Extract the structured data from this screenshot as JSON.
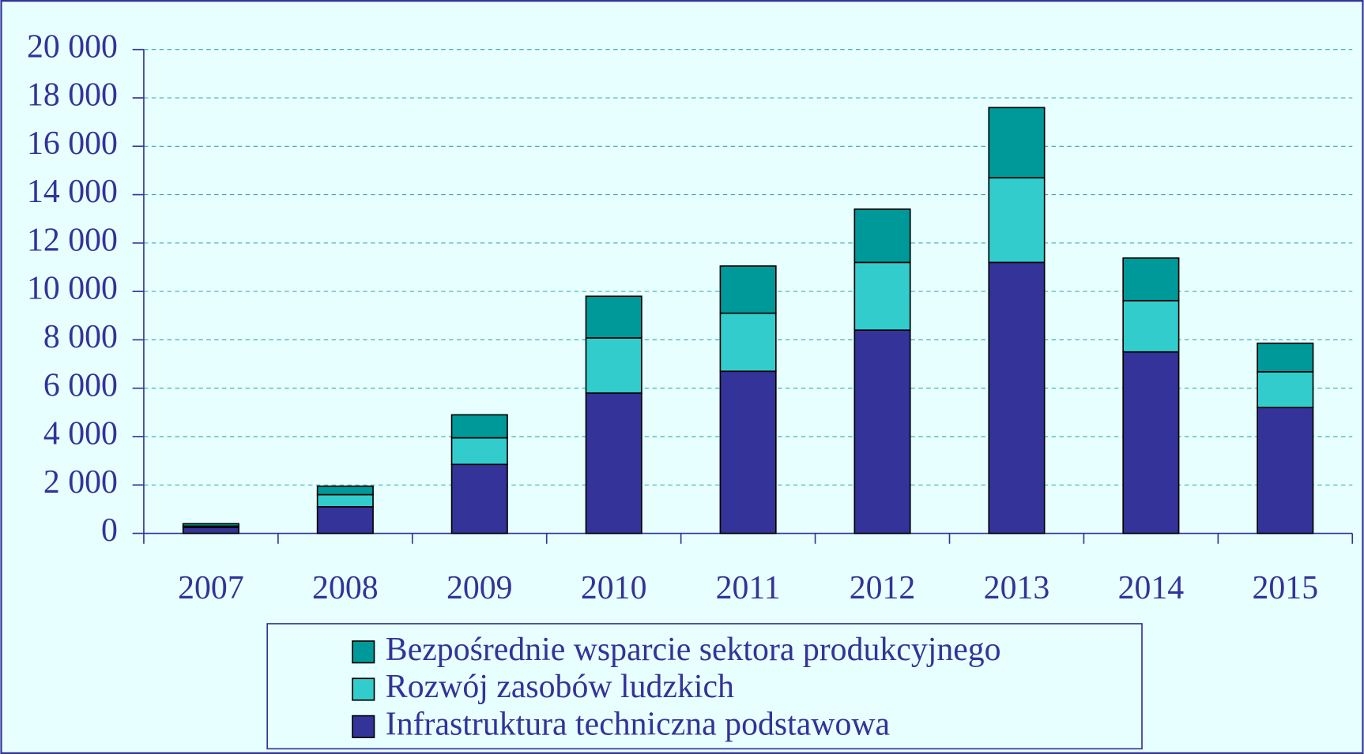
{
  "chart_data": {
    "type": "bar",
    "stacked": true,
    "categories": [
      "2007",
      "2008",
      "2009",
      "2010",
      "2011",
      "2012",
      "2013",
      "2014",
      "2015"
    ],
    "series": [
      {
        "name": "Infrastruktura techniczna podstawowa",
        "color": "#333399",
        "values": [
          250,
          1100,
          2850,
          5800,
          6700,
          8400,
          11200,
          7500,
          5200
        ]
      },
      {
        "name": "Rozwój zasobów ludzkich",
        "color": "#33cccc",
        "values": [
          50,
          500,
          1100,
          2280,
          2400,
          2800,
          3500,
          2120,
          1480
        ]
      },
      {
        "name": "Bezpośrednie wsparcie sektora produkcyjnego",
        "color": "#009999",
        "values": [
          100,
          350,
          950,
          1720,
          1950,
          2200,
          2900,
          1760,
          1180
        ]
      }
    ],
    "ylim": [
      0,
      20000
    ],
    "yticks": [
      0,
      {
        "value": 2000,
        "label": "2 000"
      },
      {
        "value": 4000,
        "label": "4 000"
      },
      {
        "value": 6000,
        "label": "6 000"
      },
      {
        "value": 8000,
        "label": "8 000"
      },
      {
        "value": 10000,
        "label": "10 000"
      },
      {
        "value": 12000,
        "label": "12 000"
      },
      {
        "value": 14000,
        "label": "14 000"
      },
      {
        "value": 16000,
        "label": "16 000"
      },
      {
        "value": 18000,
        "label": "18 000"
      },
      {
        "value": 20000,
        "label": "20 000"
      }
    ],
    "grid": true,
    "legend": "bottom"
  }
}
